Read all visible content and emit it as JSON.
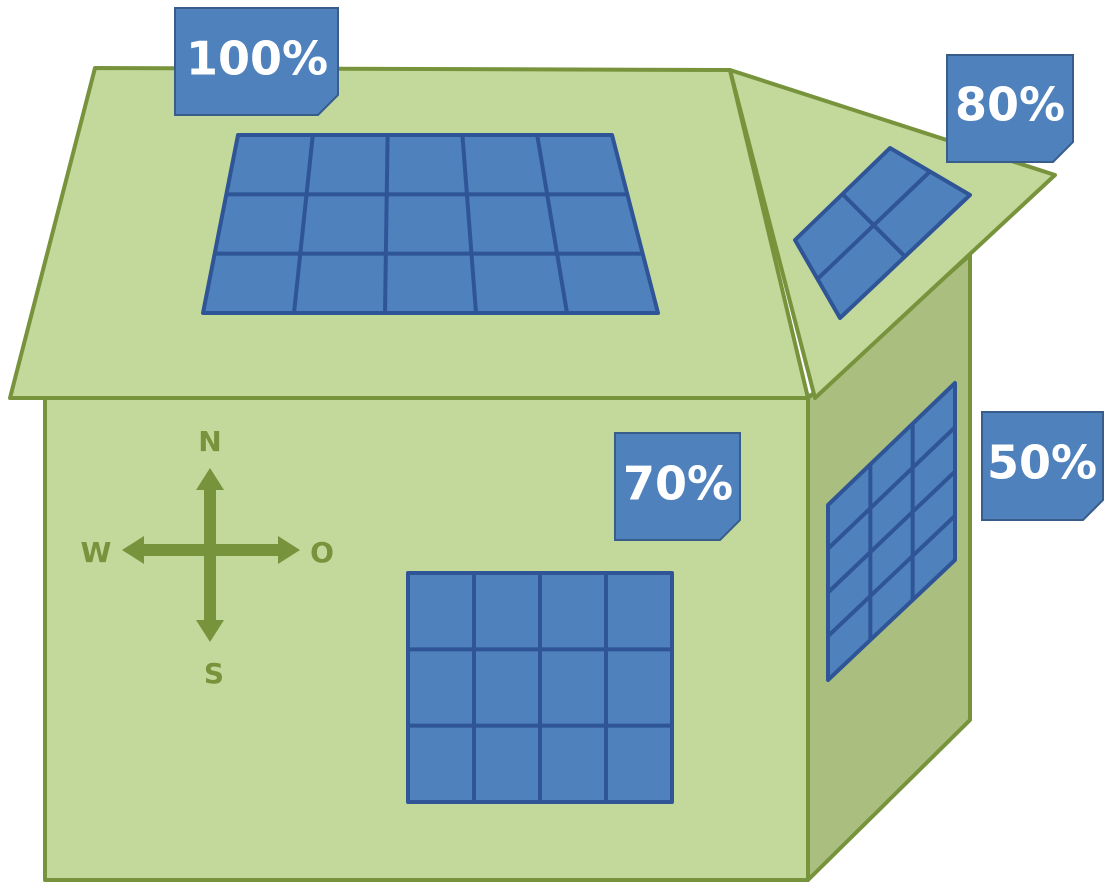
{
  "labels": [
    {
      "text": "100%"
    },
    {
      "text": "80%"
    },
    {
      "text": "70%"
    },
    {
      "text": "50%"
    }
  ],
  "compass": {
    "north": "N",
    "west": "W",
    "east": "O",
    "south": "S"
  }
}
